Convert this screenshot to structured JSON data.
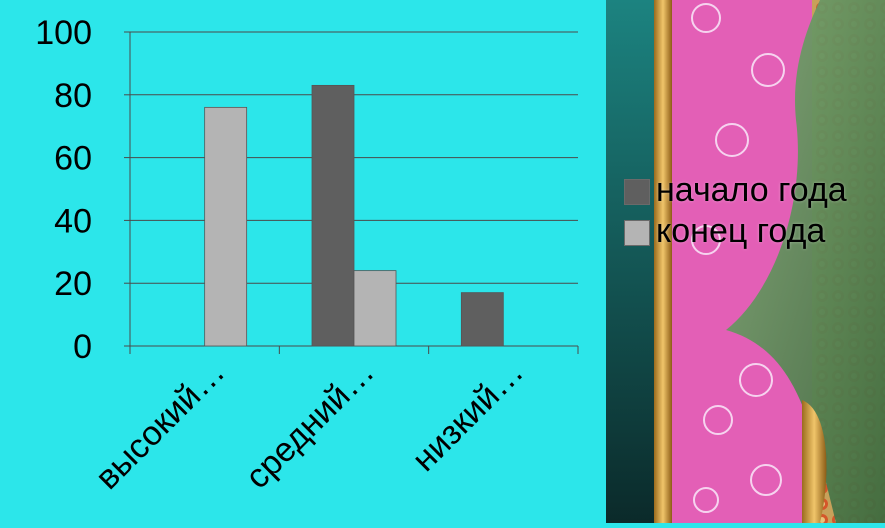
{
  "chart_data": {
    "type": "bar",
    "categories": [
      "высокий…",
      "средний…",
      "низкий…"
    ],
    "series": [
      {
        "name": "начало года",
        "values": [
          0,
          83,
          17
        ],
        "color": "#5f5f5f"
      },
      {
        "name": "конец года",
        "values": [
          76,
          24,
          0
        ],
        "color": "#b4b4b4"
      }
    ],
    "ylim": [
      0,
      100
    ],
    "yticks": [
      "0",
      "20",
      "40",
      "60",
      "80",
      "100"
    ],
    "grid": true,
    "legend_position": "right",
    "background": "#2ce6ea"
  },
  "legend": {
    "items": [
      {
        "label": "начало года",
        "color": "#5f5f5f"
      },
      {
        "label": "конец года",
        "color": "#b4b4b4"
      }
    ]
  },
  "decor": {
    "stripe_colors": [
      "#1f7a78",
      "#c8932f",
      "#e35fb6",
      "#6f9a63",
      "#c4602f"
    ]
  }
}
